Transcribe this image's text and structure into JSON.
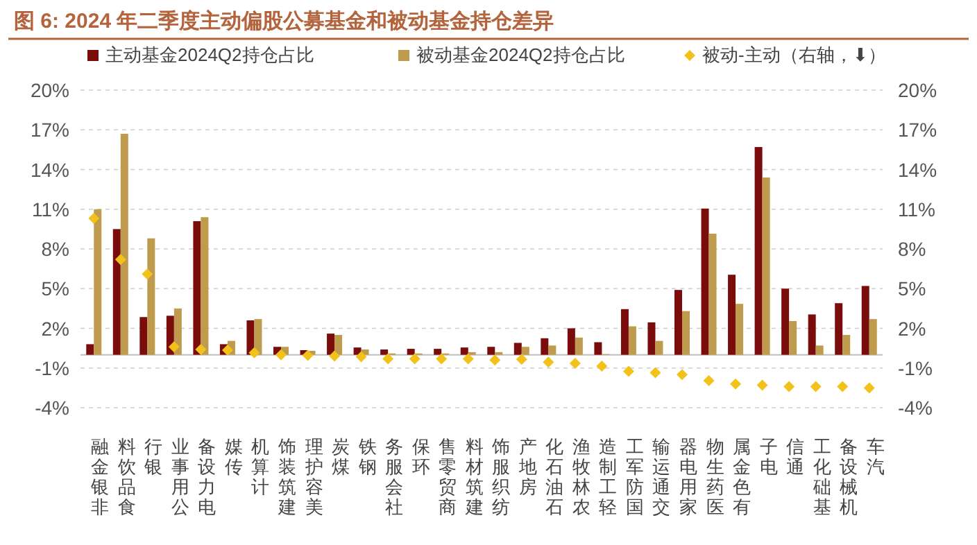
{
  "chart_data": {
    "type": "bar",
    "title": "图 6:  2024 年二季度主动偏股公募基金和被动基金持仓差异",
    "categories": [
      "非银金融",
      "食品饮料",
      "银行",
      "公用事业",
      "电力设备",
      "传媒",
      "计算机",
      "建筑装饰",
      "美容护理",
      "煤炭",
      "钢铁",
      "社会服务",
      "环保",
      "商贸零售",
      "建筑材料",
      "纺织服饰",
      "房地产",
      "石油石化",
      "农林牧渔",
      "轻工制造",
      "国防军工",
      "交通运输",
      "家用电器",
      "医药生物",
      "有色金属",
      "电子",
      "通信",
      "基础化工",
      "机械设备",
      "汽车"
    ],
    "series": [
      {
        "name": "主动基金2024Q2持仓占比",
        "color": "#7a0c0c",
        "values": [
          0.8,
          9.5,
          2.85,
          2.95,
          10.1,
          0.8,
          2.6,
          0.6,
          0.35,
          1.6,
          0.55,
          0.4,
          0.45,
          0.45,
          0.55,
          0.6,
          0.9,
          1.25,
          2.0,
          0.95,
          3.45,
          2.45,
          4.9,
          11.05,
          6.05,
          15.7,
          5.0,
          3.05,
          3.9,
          5.2
        ]
      },
      {
        "name": "被动基金2024Q2持仓占比",
        "color": "#bf9b4e",
        "values": [
          11.0,
          16.7,
          8.8,
          3.5,
          10.4,
          1.05,
          2.7,
          0.6,
          0.3,
          1.5,
          0.4,
          0.1,
          0.1,
          0.1,
          0.2,
          0.2,
          0.6,
          0.7,
          1.3,
          0.05,
          2.15,
          1.05,
          3.3,
          9.15,
          3.85,
          13.4,
          2.55,
          0.7,
          1.5,
          2.7
        ]
      },
      {
        "name": "被动-主动（右轴，⬇）",
        "type": "scatter",
        "axis": "y2",
        "color": "#f2c21b",
        "values": [
          10.3,
          7.2,
          6.1,
          0.6,
          0.4,
          0.35,
          0.15,
          0.0,
          -0.05,
          -0.1,
          -0.15,
          -0.3,
          -0.3,
          -0.3,
          -0.3,
          -0.4,
          -0.35,
          -0.55,
          -0.65,
          -0.85,
          -1.25,
          -1.35,
          -1.5,
          -1.95,
          -2.2,
          -2.3,
          -2.4,
          -2.4,
          -2.4,
          -2.5
        ]
      }
    ],
    "ylim": [
      -4,
      20
    ],
    "yticks": [
      {
        "value": -4,
        "label": "-4%"
      },
      {
        "value": -1,
        "label": "-1%"
      },
      {
        "value": 2,
        "label": "2%"
      },
      {
        "value": 5,
        "label": "5%"
      },
      {
        "value": 8,
        "label": "8%"
      },
      {
        "value": 11,
        "label": "11%"
      },
      {
        "value": 14,
        "label": "14%"
      },
      {
        "value": 17,
        "label": "17%"
      },
      {
        "value": 20,
        "label": "20%"
      }
    ],
    "y2lim": [
      -4,
      20
    ],
    "y2ticks": [
      {
        "value": -4,
        "label": "-4%"
      },
      {
        "value": -1,
        "label": "-1%"
      },
      {
        "value": 2,
        "label": "2%"
      },
      {
        "value": 5,
        "label": "5%"
      },
      {
        "value": 8,
        "label": "8%"
      },
      {
        "value": 11,
        "label": "11%"
      },
      {
        "value": 14,
        "label": "14%"
      },
      {
        "value": 17,
        "label": "17%"
      },
      {
        "value": 20,
        "label": "20%"
      }
    ],
    "grid": "y",
    "legend": "top",
    "marker": "diamond"
  }
}
